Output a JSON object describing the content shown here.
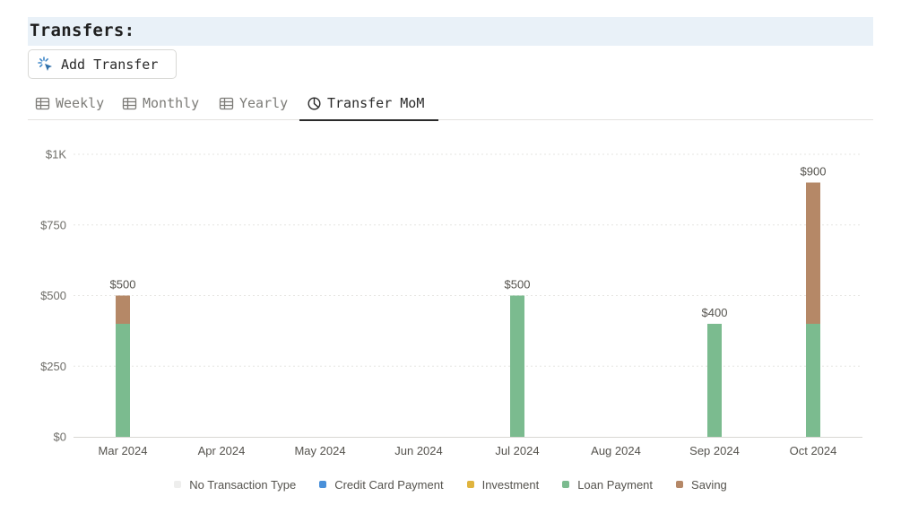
{
  "header": {
    "title": "Transfers:"
  },
  "toolbar": {
    "add_label": "Add Transfer",
    "add_icon": "sparkle-cursor-icon"
  },
  "tabs": [
    {
      "label": "Weekly",
      "icon": "table-icon",
      "active": false
    },
    {
      "label": "Monthly",
      "icon": "table-icon",
      "active": false
    },
    {
      "label": "Yearly",
      "icon": "table-icon",
      "active": false
    },
    {
      "label": "Transfer MoM",
      "icon": "pie-chart-icon",
      "active": true
    }
  ],
  "chart_data": {
    "type": "bar",
    "stacked": true,
    "categories": [
      "Mar 2024",
      "Apr 2024",
      "May 2024",
      "Jun 2024",
      "Jul 2024",
      "Aug 2024",
      "Sep 2024",
      "Oct 2024"
    ],
    "series": [
      {
        "name": "No Transaction Type",
        "color": "#eeeeed",
        "values": [
          0,
          0,
          0,
          0,
          0,
          0,
          0,
          0
        ]
      },
      {
        "name": "Credit Card Payment",
        "color": "#4a90d9",
        "values": [
          0,
          0,
          0,
          0,
          0,
          0,
          0,
          0
        ]
      },
      {
        "name": "Investment",
        "color": "#e0b43e",
        "values": [
          0,
          0,
          0,
          0,
          0,
          0,
          0,
          0
        ]
      },
      {
        "name": "Loan Payment",
        "color": "#7bbb8f",
        "values": [
          400,
          0,
          0,
          0,
          500,
          0,
          400,
          400
        ]
      },
      {
        "name": "Saving",
        "color": "#b58867",
        "values": [
          100,
          0,
          0,
          0,
          0,
          0,
          0,
          500
        ]
      }
    ],
    "totals": [
      {
        "index": 0,
        "label": "$500"
      },
      {
        "index": 4,
        "label": "$500"
      },
      {
        "index": 6,
        "label": "$400"
      },
      {
        "index": 7,
        "label": "$900"
      }
    ],
    "y_ticks": [
      {
        "value": 0,
        "label": "$0"
      },
      {
        "value": 250,
        "label": "$250"
      },
      {
        "value": 500,
        "label": "$500"
      },
      {
        "value": 750,
        "label": "$750"
      },
      {
        "value": 1000,
        "label": "$1K"
      }
    ],
    "ylim": [
      0,
      1000
    ],
    "grid": true,
    "legend": "bottom-center"
  }
}
